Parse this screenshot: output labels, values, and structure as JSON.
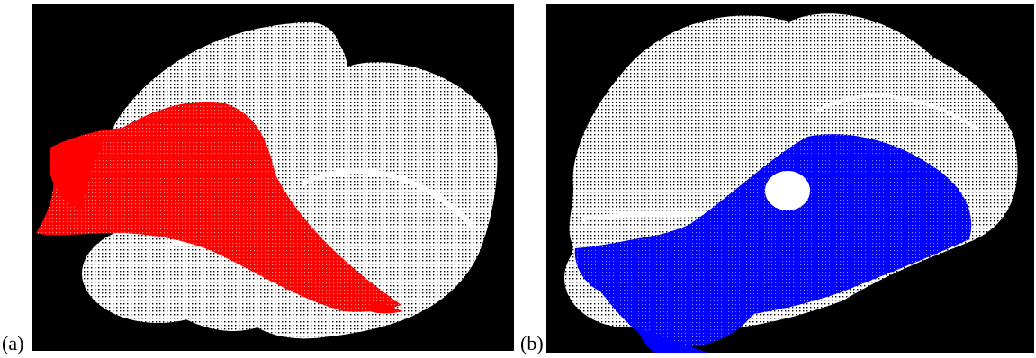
{
  "figure": {
    "panels": [
      {
        "label": "(a)",
        "background_color": "#000000",
        "model_color": "#ffffff",
        "overlay_color": "#ff0000"
      },
      {
        "label": "(b)",
        "background_color": "#000000",
        "model_color": "#ffffff",
        "overlay_color": "#0000ff"
      }
    ]
  }
}
